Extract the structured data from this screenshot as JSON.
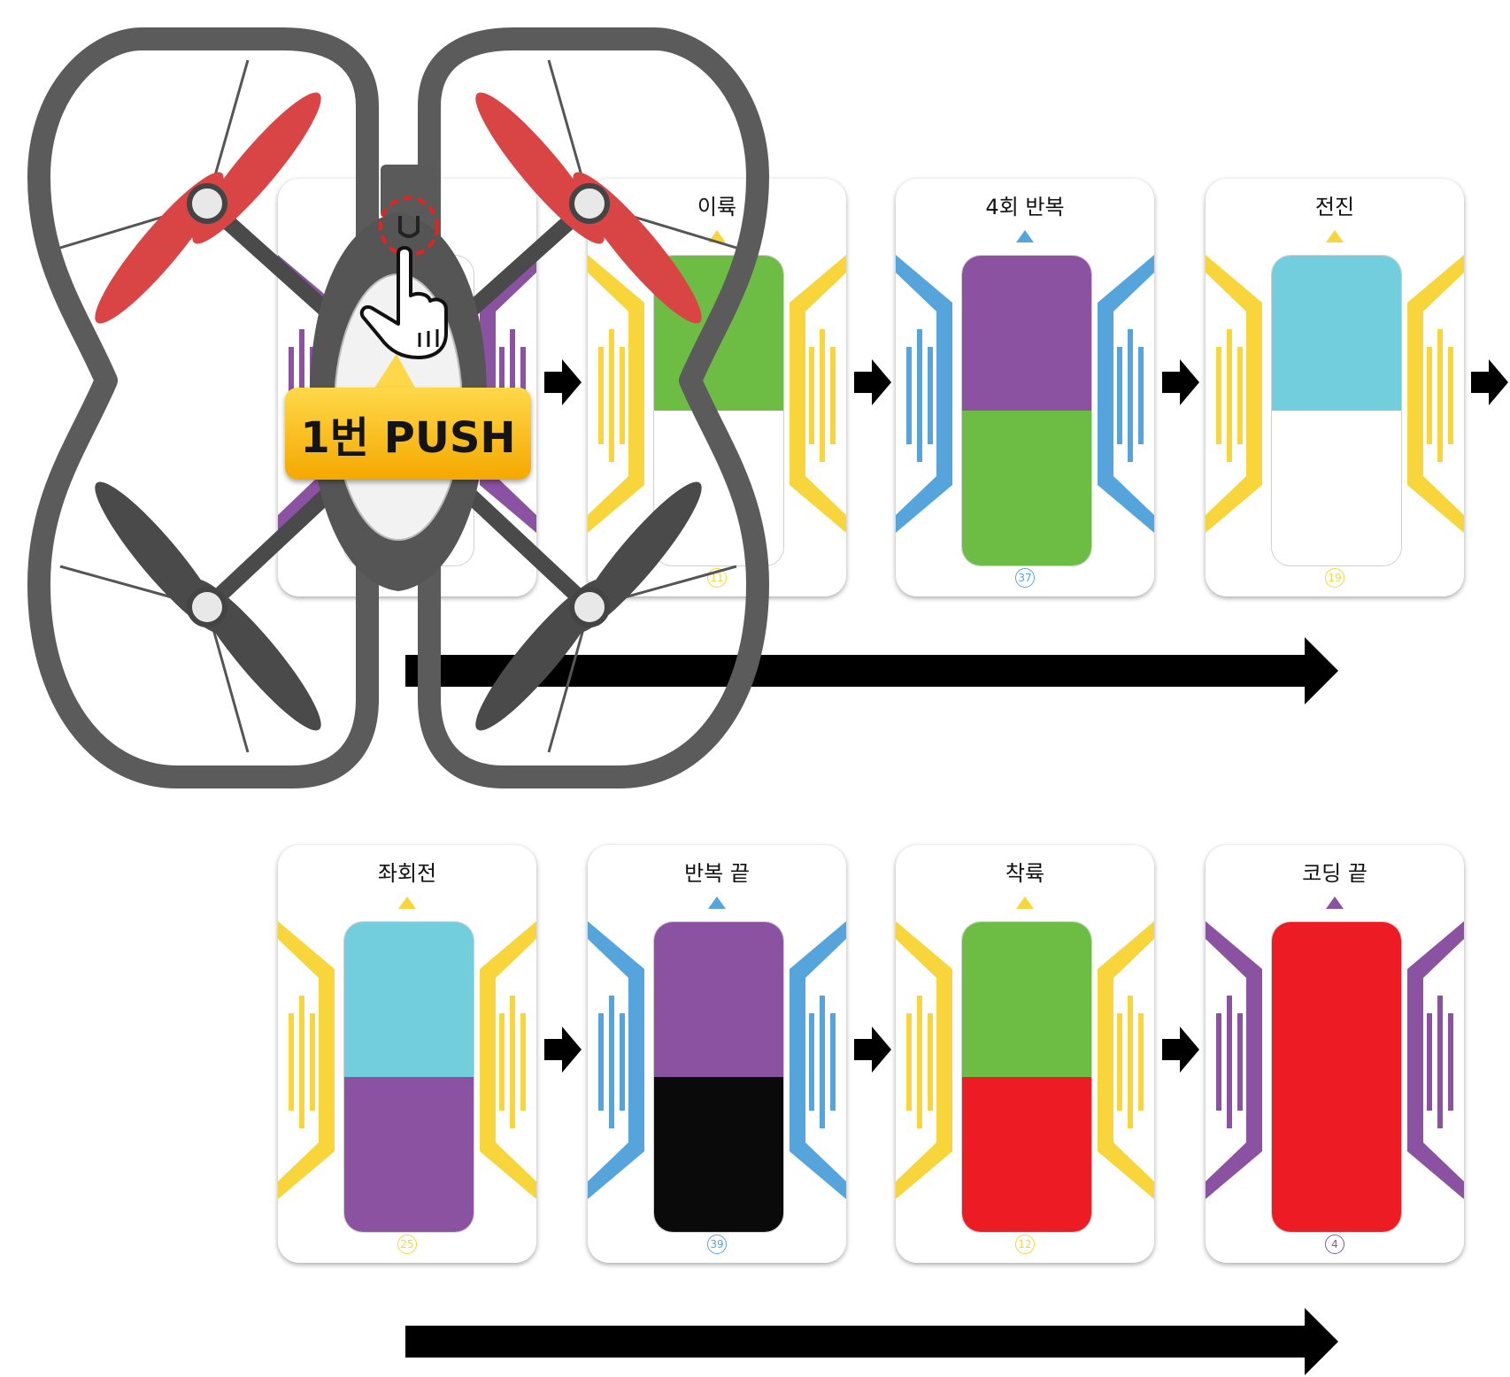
{
  "colors": {
    "yellow": "#f7d53b",
    "blue": "#55a5dc",
    "purple": "#8b52a1",
    "green": "#6dbd45",
    "cyan": "#72cddc",
    "red": "#ed1c24",
    "black": "#0a0a0a",
    "white": "#ffffff"
  },
  "push_label": "1번 PUSH",
  "cards": [
    {
      "title": "",
      "number": "",
      "frame": "purple",
      "top": "white",
      "bottom": "white"
    },
    {
      "title": "이륙",
      "number": "11",
      "frame": "yellow",
      "top": "green",
      "bottom": "white"
    },
    {
      "title": "4회 반복",
      "number": "37",
      "frame": "blue",
      "top": "purple",
      "bottom": "green"
    },
    {
      "title": "전진",
      "number": "19",
      "frame": "yellow",
      "top": "cyan",
      "bottom": "white"
    },
    {
      "title": "좌회전",
      "number": "25",
      "frame": "yellow",
      "top": "cyan",
      "bottom": "purple"
    },
    {
      "title": "반복 끝",
      "number": "39",
      "frame": "blue",
      "top": "purple",
      "bottom": "black"
    },
    {
      "title": "착륙",
      "number": "12",
      "frame": "yellow",
      "top": "green",
      "bottom": "red"
    },
    {
      "title": "코딩 끝",
      "number": "4",
      "frame": "purple",
      "top": "red",
      "bottom": "red"
    }
  ],
  "icons": [
    "drone-icon",
    "hand-pointer-icon",
    "arrow-right-icon"
  ]
}
